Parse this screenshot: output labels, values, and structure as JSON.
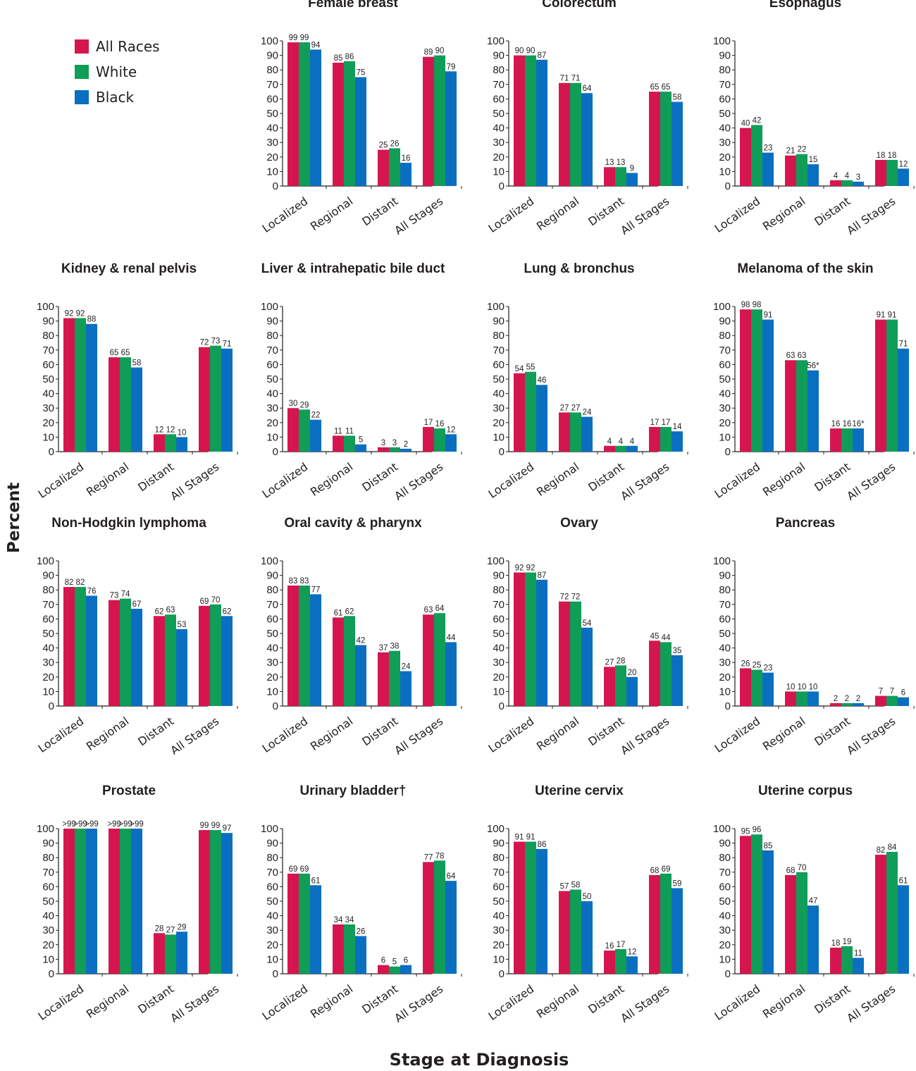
{
  "legend": {
    "items": [
      {
        "label": "All Races",
        "color": "#d5164e"
      },
      {
        "label": "White",
        "color": "#0f9d58"
      },
      {
        "label": "Black",
        "color": "#0b6fc1"
      }
    ]
  },
  "axes": {
    "ylabel": "Percent",
    "xlabel": "Stage at Diagnosis"
  },
  "chart_data": [
    {
      "type": "bar",
      "title": "Female breast",
      "categories": [
        "Localized",
        "Regional",
        "Distant",
        "All Stages"
      ],
      "ylim": [
        0,
        100
      ],
      "yticks": [
        0,
        10,
        20,
        30,
        40,
        50,
        60,
        70,
        80,
        90,
        100
      ],
      "series": [
        {
          "name": "All Races",
          "values": [
            99,
            85,
            25,
            89
          ]
        },
        {
          "name": "White",
          "values": [
            99,
            86,
            26,
            90
          ]
        },
        {
          "name": "Black",
          "values": [
            94,
            75,
            16,
            79
          ]
        }
      ],
      "labels": [
        [
          "99",
          "85",
          "25",
          "89"
        ],
        [
          "99",
          "86",
          "26",
          "90"
        ],
        [
          "94",
          "75",
          "16",
          "79"
        ]
      ]
    },
    {
      "type": "bar",
      "title": "Colorectum",
      "categories": [
        "Localized",
        "Regional",
        "Distant",
        "All Stages"
      ],
      "ylim": [
        0,
        100
      ],
      "yticks": [
        0,
        10,
        20,
        30,
        40,
        50,
        60,
        70,
        80,
        90,
        100
      ],
      "series": [
        {
          "name": "All Races",
          "values": [
            90,
            71,
            13,
            65
          ]
        },
        {
          "name": "White",
          "values": [
            90,
            71,
            13,
            65
          ]
        },
        {
          "name": "Black",
          "values": [
            87,
            64,
            9,
            58
          ]
        }
      ],
      "labels": [
        [
          "90",
          "71",
          "13",
          "65"
        ],
        [
          "90",
          "71",
          "13",
          "65"
        ],
        [
          "87",
          "64",
          "9",
          "58"
        ]
      ]
    },
    {
      "type": "bar",
      "title": "Esophagus",
      "categories": [
        "Localized",
        "Regional",
        "Distant",
        "All Stages"
      ],
      "ylim": [
        0,
        100
      ],
      "yticks": [
        0,
        10,
        20,
        30,
        40,
        50,
        60,
        70,
        80,
        90,
        100
      ],
      "series": [
        {
          "name": "All Races",
          "values": [
            40,
            21,
            4,
            18
          ]
        },
        {
          "name": "White",
          "values": [
            42,
            22,
            4,
            18
          ]
        },
        {
          "name": "Black",
          "values": [
            23,
            15,
            3,
            12
          ]
        }
      ],
      "labels": [
        [
          "40",
          "21",
          "4",
          "18"
        ],
        [
          "42",
          "22",
          "4",
          "18"
        ],
        [
          "23",
          "15",
          "3",
          "12"
        ]
      ]
    },
    {
      "type": "bar",
      "title": "Kidney & renal pelvis",
      "categories": [
        "Localized",
        "Regional",
        "Distant",
        "All Stages"
      ],
      "ylim": [
        0,
        100
      ],
      "yticks": [
        0,
        10,
        20,
        30,
        40,
        50,
        60,
        70,
        80,
        90,
        100
      ],
      "series": [
        {
          "name": "All Races",
          "values": [
            92,
            65,
            12,
            72
          ]
        },
        {
          "name": "White",
          "values": [
            92,
            65,
            12,
            73
          ]
        },
        {
          "name": "Black",
          "values": [
            88,
            58,
            10,
            71
          ]
        }
      ],
      "labels": [
        [
          "92",
          "65",
          "12",
          "72"
        ],
        [
          "92",
          "65",
          "12",
          "73"
        ],
        [
          "88",
          "58",
          "10",
          "71"
        ]
      ]
    },
    {
      "type": "bar",
      "title": "Liver & intrahepatic bile duct",
      "categories": [
        "Localized",
        "Regional",
        "Distant",
        "All Stages"
      ],
      "ylim": [
        0,
        100
      ],
      "yticks": [
        0,
        10,
        20,
        30,
        40,
        50,
        60,
        70,
        80,
        90,
        100
      ],
      "series": [
        {
          "name": "All Races",
          "values": [
            30,
            11,
            3,
            17
          ]
        },
        {
          "name": "White",
          "values": [
            29,
            11,
            3,
            16
          ]
        },
        {
          "name": "Black",
          "values": [
            22,
            5,
            2,
            12
          ]
        }
      ],
      "labels": [
        [
          "30",
          "11",
          "3",
          "17"
        ],
        [
          "29",
          "11",
          "3",
          "16"
        ],
        [
          "22",
          "5",
          "2",
          "12"
        ]
      ]
    },
    {
      "type": "bar",
      "title": "Lung & bronchus",
      "categories": [
        "Localized",
        "Regional",
        "Distant",
        "All Stages"
      ],
      "ylim": [
        0,
        100
      ],
      "yticks": [
        0,
        10,
        20,
        30,
        40,
        50,
        60,
        70,
        80,
        90,
        100
      ],
      "series": [
        {
          "name": "All Races",
          "values": [
            54,
            27,
            4,
            17
          ]
        },
        {
          "name": "White",
          "values": [
            55,
            27,
            4,
            17
          ]
        },
        {
          "name": "Black",
          "values": [
            46,
            24,
            4,
            14
          ]
        }
      ],
      "labels": [
        [
          "54",
          "27",
          "4",
          "17"
        ],
        [
          "55",
          "27",
          "4",
          "17"
        ],
        [
          "46",
          "24",
          "4",
          "14"
        ]
      ]
    },
    {
      "type": "bar",
      "title": "Melanoma of the skin",
      "categories": [
        "Localized",
        "Regional",
        "Distant",
        "All Stages"
      ],
      "ylim": [
        0,
        100
      ],
      "yticks": [
        0,
        10,
        20,
        30,
        40,
        50,
        60,
        70,
        80,
        90,
        100
      ],
      "series": [
        {
          "name": "All Races",
          "values": [
            98,
            63,
            16,
            91
          ]
        },
        {
          "name": "White",
          "values": [
            98,
            63,
            16,
            91
          ]
        },
        {
          "name": "Black",
          "values": [
            91,
            56,
            16,
            71
          ]
        }
      ],
      "labels": [
        [
          "98",
          "63",
          "16",
          "91"
        ],
        [
          "98",
          "63",
          "16",
          "91"
        ],
        [
          "91",
          "56*",
          "16*",
          "71"
        ]
      ]
    },
    {
      "type": "bar",
      "title": "Non-Hodgkin lymphoma",
      "categories": [
        "Localized",
        "Regional",
        "Distant",
        "All Stages"
      ],
      "ylim": [
        0,
        100
      ],
      "yticks": [
        0,
        10,
        20,
        30,
        40,
        50,
        60,
        70,
        80,
        90,
        100
      ],
      "series": [
        {
          "name": "All Races",
          "values": [
            82,
            73,
            62,
            69
          ]
        },
        {
          "name": "White",
          "values": [
            82,
            74,
            63,
            70
          ]
        },
        {
          "name": "Black",
          "values": [
            76,
            67,
            53,
            62
          ]
        }
      ],
      "labels": [
        [
          "82",
          "73",
          "62",
          "69"
        ],
        [
          "82",
          "74",
          "63",
          "70"
        ],
        [
          "76",
          "67",
          "53",
          "62"
        ]
      ]
    },
    {
      "type": "bar",
      "title": "Oral cavity & pharynx",
      "categories": [
        "Localized",
        "Regional",
        "Distant",
        "All Stages"
      ],
      "ylim": [
        0,
        100
      ],
      "yticks": [
        0,
        10,
        20,
        30,
        40,
        50,
        60,
        70,
        80,
        90,
        100
      ],
      "series": [
        {
          "name": "All Races",
          "values": [
            83,
            61,
            37,
            63
          ]
        },
        {
          "name": "White",
          "values": [
            83,
            62,
            38,
            64
          ]
        },
        {
          "name": "Black",
          "values": [
            77,
            42,
            24,
            44
          ]
        }
      ],
      "labels": [
        [
          "83",
          "61",
          "37",
          "63"
        ],
        [
          "83",
          "62",
          "38",
          "64"
        ],
        [
          "77",
          "42",
          "24",
          "44"
        ]
      ]
    },
    {
      "type": "bar",
      "title": "Ovary",
      "categories": [
        "Localized",
        "Regional",
        "Distant",
        "All Stages"
      ],
      "ylim": [
        0,
        100
      ],
      "yticks": [
        0,
        10,
        20,
        30,
        40,
        50,
        60,
        70,
        80,
        90,
        100
      ],
      "series": [
        {
          "name": "All Races",
          "values": [
            92,
            72,
            27,
            45
          ]
        },
        {
          "name": "White",
          "values": [
            92,
            72,
            28,
            44
          ]
        },
        {
          "name": "Black",
          "values": [
            87,
            54,
            20,
            35
          ]
        }
      ],
      "labels": [
        [
          "92",
          "72",
          "27",
          "45"
        ],
        [
          "92",
          "72",
          "28",
          "44"
        ],
        [
          "87",
          "54",
          "20",
          "35"
        ]
      ]
    },
    {
      "type": "bar",
      "title": "Pancreas",
      "categories": [
        "Localized",
        "Regional",
        "Distant",
        "All Stages"
      ],
      "ylim": [
        0,
        100
      ],
      "yticks": [
        0,
        10,
        20,
        30,
        40,
        50,
        60,
        70,
        80,
        90,
        100
      ],
      "series": [
        {
          "name": "All Races",
          "values": [
            26,
            10,
            2,
            7
          ]
        },
        {
          "name": "White",
          "values": [
            25,
            10,
            2,
            7
          ]
        },
        {
          "name": "Black",
          "values": [
            23,
            10,
            2,
            6
          ]
        }
      ],
      "labels": [
        [
          "26",
          "10",
          "2",
          "7"
        ],
        [
          "25",
          "10",
          "2",
          "7"
        ],
        [
          "23",
          "10",
          "2",
          "6"
        ]
      ]
    },
    {
      "type": "bar",
      "title": "Prostate",
      "categories": [
        "Localized",
        "Regional",
        "Distant",
        "All Stages"
      ],
      "ylim": [
        0,
        100
      ],
      "yticks": [
        0,
        10,
        20,
        30,
        40,
        50,
        60,
        70,
        80,
        90,
        100
      ],
      "series": [
        {
          "name": "All Races",
          "values": [
            100,
            100,
            28,
            99
          ]
        },
        {
          "name": "White",
          "values": [
            100,
            100,
            27,
            99
          ]
        },
        {
          "name": "Black",
          "values": [
            100,
            100,
            29,
            97
          ]
        }
      ],
      "labels": [
        [
          ">99",
          ">99",
          "28",
          "99"
        ],
        [
          ">99",
          ">99",
          "27",
          "99"
        ],
        [
          ">99",
          ">99",
          "29",
          "97"
        ]
      ]
    },
    {
      "type": "bar",
      "title": "Urinary bladder†",
      "categories": [
        "Localized",
        "Regional",
        "Distant",
        "All Stages"
      ],
      "ylim": [
        0,
        100
      ],
      "yticks": [
        0,
        10,
        20,
        30,
        40,
        50,
        60,
        70,
        80,
        90,
        100
      ],
      "series": [
        {
          "name": "All Races",
          "values": [
            69,
            34,
            6,
            77
          ]
        },
        {
          "name": "White",
          "values": [
            69,
            34,
            5,
            78
          ]
        },
        {
          "name": "Black",
          "values": [
            61,
            26,
            6,
            64
          ]
        }
      ],
      "labels": [
        [
          "69",
          "34",
          "6",
          "77"
        ],
        [
          "69",
          "34",
          "5",
          "78"
        ],
        [
          "61",
          "26",
          "6",
          "64"
        ]
      ]
    },
    {
      "type": "bar",
      "title": "Uterine cervix",
      "categories": [
        "Localized",
        "Regional",
        "Distant",
        "All Stages"
      ],
      "ylim": [
        0,
        100
      ],
      "yticks": [
        0,
        10,
        20,
        30,
        40,
        50,
        60,
        70,
        80,
        90,
        100
      ],
      "series": [
        {
          "name": "All Races",
          "values": [
            91,
            57,
            16,
            68
          ]
        },
        {
          "name": "White",
          "values": [
            91,
            58,
            17,
            69
          ]
        },
        {
          "name": "Black",
          "values": [
            86,
            50,
            12,
            59
          ]
        }
      ],
      "labels": [
        [
          "91",
          "57",
          "16",
          "68"
        ],
        [
          "91",
          "58",
          "17",
          "69"
        ],
        [
          "86",
          "50",
          "12",
          "59"
        ]
      ]
    },
    {
      "type": "bar",
      "title": "Uterine corpus",
      "categories": [
        "Localized",
        "Regional",
        "Distant",
        "All Stages"
      ],
      "ylim": [
        0,
        100
      ],
      "yticks": [
        0,
        10,
        20,
        30,
        40,
        50,
        60,
        70,
        80,
        90,
        100
      ],
      "series": [
        {
          "name": "All Races",
          "values": [
            95,
            68,
            18,
            82
          ]
        },
        {
          "name": "White",
          "values": [
            96,
            70,
            19,
            84
          ]
        },
        {
          "name": "Black",
          "values": [
            85,
            47,
            11,
            61
          ]
        }
      ],
      "labels": [
        [
          "95",
          "68",
          "18",
          "82"
        ],
        [
          "96",
          "70",
          "19",
          "84"
        ],
        [
          "85",
          "47",
          "11",
          "61"
        ]
      ]
    }
  ]
}
